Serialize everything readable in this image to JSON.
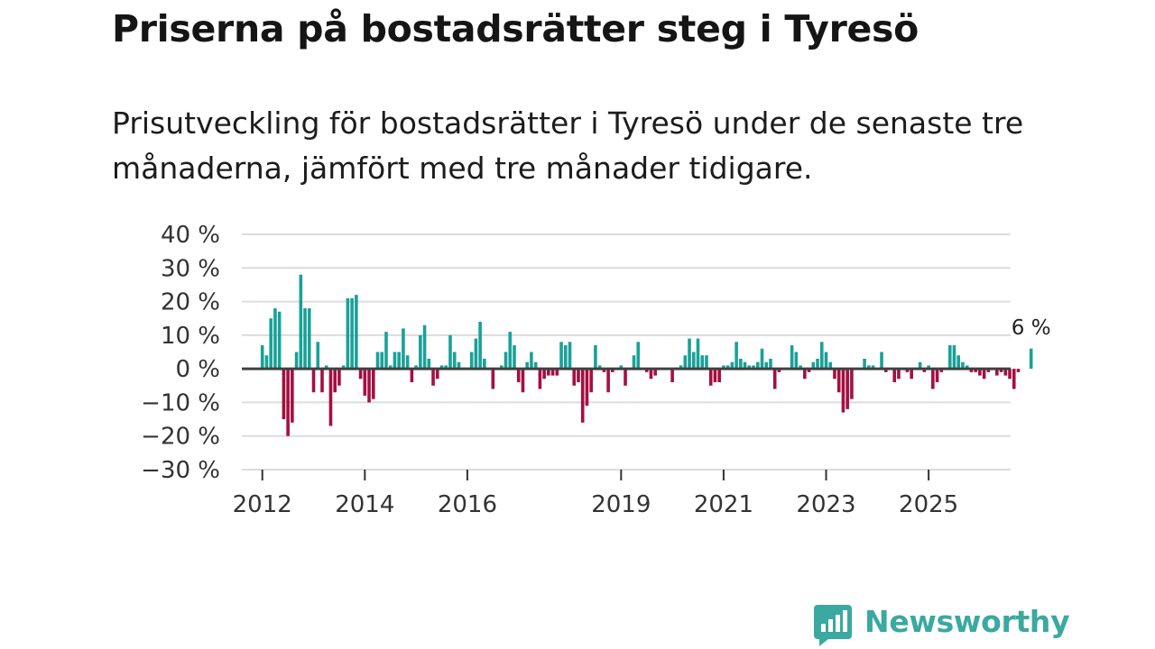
{
  "title": "Priserna på bostadsrätter steg i Tyresö",
  "subtitle": "Prisutveckling för bostadsrätter i Tyresö under de senaste tre månaderna, jämfört med tre månader tidigare.",
  "brand": {
    "name": "Newsworthy",
    "color": "#3aa99f"
  },
  "colors": {
    "positive": "#1aa198",
    "negative": "#a50f3f",
    "grid": "#dcdcdc",
    "zero": "#404040"
  },
  "chart_data": {
    "type": "bar",
    "title": "Priserna på bostadsrätter steg i Tyresö",
    "xlabel": "",
    "ylabel": "",
    "ylim": [
      -30,
      40
    ],
    "y_ticks": [
      40,
      30,
      20,
      10,
      0,
      -10,
      -20,
      -30
    ],
    "y_tick_labels": [
      "40 %",
      "30 %",
      "20 %",
      "10 %",
      "0 %",
      "−10 %",
      "−20 %",
      "−30 %"
    ],
    "x_domain": [
      2011.6,
      2026.6
    ],
    "x_ticks": [
      2012,
      2014,
      2016,
      2019,
      2021,
      2023,
      2025
    ],
    "x_tick_labels": [
      "2012",
      "2014",
      "2016",
      "2019",
      "2021",
      "2023",
      "2025"
    ],
    "start": 2012.0,
    "step_years": 0.08333,
    "values": [
      7,
      4,
      15,
      18,
      17,
      -15,
      -20,
      -16,
      5,
      28,
      18,
      18,
      -7,
      8,
      -7,
      1,
      -17,
      -7,
      -5,
      1,
      21,
      21,
      22,
      -3,
      -8,
      -10,
      -9,
      5,
      5,
      11,
      1,
      5,
      5,
      12,
      4,
      -4,
      1,
      10,
      13,
      3,
      -5,
      -3,
      1,
      1,
      10,
      5,
      2,
      0,
      0,
      5,
      9,
      14,
      3,
      0,
      -6,
      0,
      1,
      5,
      11,
      7,
      -4,
      -7,
      2,
      5,
      2,
      -6,
      -3,
      -2,
      -2,
      -2,
      8,
      7,
      8,
      -5,
      -4,
      -16,
      -11,
      -7,
      7,
      1,
      -1,
      -7,
      -1,
      0,
      1,
      -5,
      0,
      4,
      8,
      0,
      -1,
      -3,
      -2,
      0,
      0,
      0,
      -4,
      0,
      1,
      4,
      9,
      5,
      9,
      4,
      4,
      -5,
      -4,
      -4,
      1,
      1,
      2,
      8,
      3,
      2,
      1,
      1,
      2,
      6,
      2,
      3,
      -6,
      -1,
      0,
      0,
      7,
      5,
      1,
      -3,
      -1,
      2,
      3,
      8,
      5,
      2,
      -3,
      -7,
      -13,
      -12,
      -9,
      0,
      0,
      3,
      1,
      1,
      0,
      5,
      -1,
      0,
      -4,
      -3,
      0,
      -1,
      -3,
      0,
      2,
      -1,
      1,
      -6,
      -4,
      -1,
      0,
      7,
      7,
      4,
      2,
      1,
      -1,
      -1,
      -2,
      -3,
      -1,
      0,
      -2,
      -1,
      -2,
      -3,
      -6,
      -1,
      0,
      0,
      6
    ],
    "annotation": {
      "text": "6 %",
      "target": "last_bar"
    }
  }
}
